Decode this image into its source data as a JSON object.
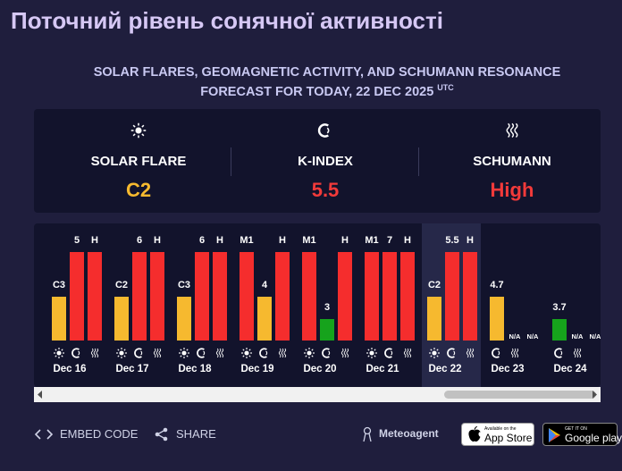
{
  "header": {
    "title": "Поточний рівень сонячної активності",
    "subtitle_line1": "SOLAR FLARES, GEOMAGNETIC ACTIVITY, AND SCHUMANN RESONANCE",
    "subtitle_line2": "FORECAST FOR TODAY, 22 DEC 2025",
    "timezone": "UTC"
  },
  "summary": [
    {
      "label": "SOLAR FLARE",
      "value": "C2",
      "color": "#f6b92f"
    },
    {
      "label": "K-INDEX",
      "value": 5.5,
      "color": "#f23a3a"
    },
    {
      "label": "SCHUMANN",
      "value": "High",
      "color": "#f23a3a"
    }
  ],
  "days": [
    {
      "date": "Dec 16",
      "flare": "C3",
      "kindex": 5,
      "schumann": "H"
    },
    {
      "date": "Dec 17",
      "flare": "C2",
      "kindex": 6,
      "schumann": "H"
    },
    {
      "date": "Dec 18",
      "flare": "C3",
      "kindex": 6,
      "schumann": "H"
    },
    {
      "date": "Dec 19",
      "flare": "M1",
      "kindex": 4,
      "schumann": "H"
    },
    {
      "date": "Dec 20",
      "flare": "M1",
      "kindex": 3,
      "schumann": "H"
    },
    {
      "date": "Dec 21",
      "flare": "M1",
      "kindex": 7,
      "schumann": "H"
    },
    {
      "date": "Dec 22",
      "flare": "C2",
      "kindex": 5.5,
      "schumann": "H",
      "current": true
    },
    {
      "date": "Dec 23",
      "kindex": 4.7,
      "extra": [
        "N/A",
        "N/A"
      ]
    },
    {
      "date": "Dec 24",
      "kindex": 3.7,
      "extra": [
        "N/A",
        "N/A"
      ]
    }
  ],
  "footer": {
    "embed": "EMBED CODE",
    "share": "SHARE",
    "brand": "Meteoagent",
    "appstore_small": "Available on the",
    "appstore": "App Store",
    "googleplay_small": "GET IT ON",
    "googleplay": "Google play"
  }
}
